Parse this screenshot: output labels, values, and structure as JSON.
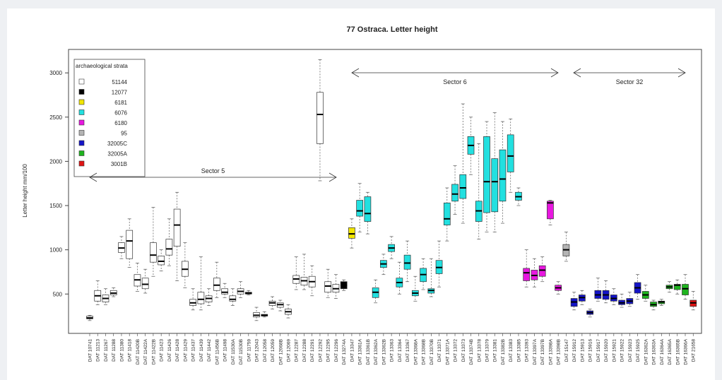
{
  "chart_data": {
    "type": "boxplot",
    "title": "77  Ostraca. Letter height",
    "y_label": "Letter height mm/100",
    "legend_title": "archaeological strata",
    "ylim": [
      55,
      3265
    ],
    "yticks": [
      500,
      1000,
      1500,
      2000,
      2500,
      3000
    ],
    "annotations": [
      "Sector 5",
      "Sector 6",
      "Sector 32"
    ],
    "strata": [
      {
        "name": "51144",
        "color": "#ffffff"
      },
      {
        "name": "12077",
        "color": "#000000"
      },
      {
        "name": "6181",
        "color": "#f2e600"
      },
      {
        "name": "6076",
        "color": "#22e0e0"
      },
      {
        "name": "6180",
        "color": "#e817e0"
      },
      {
        "name": "95",
        "color": "#b4b4b4"
      },
      {
        "name": "32005C",
        "color": "#1414c8"
      },
      {
        "name": "32005A",
        "color": "#1eb41e"
      },
      {
        "name": "3001B",
        "color": "#e01414"
      }
    ],
    "categories": [
      "DAT 10741",
      "DAT 11213",
      "DAT 11267",
      "DAT 11288",
      "DAT 11380",
      "DAT 11418",
      "DAT 11420B",
      "DAT 11422A",
      "DAT 11422B",
      "DAT 11423",
      "DAT 11426",
      "DAT 11428",
      "DAT 11429",
      "DAT 11437",
      "DAT 11439",
      "DAT 11442",
      "DAT 11456B",
      "DAT 11498",
      "DAT 11530A",
      "DAT 11530B",
      "DAT 11759",
      "DAT 12043",
      "DAT 12058",
      "DAT 12059",
      "DAT 12068B",
      "DAT 12069",
      "DAT 12287",
      "DAT 12288",
      "DAT 12291",
      "DAT 12292",
      "DAT 12295",
      "DAT 12296",
      "DAT 13274A",
      "DAT 13347",
      "DAT 13361A",
      "DAT 13361B",
      "DAT 13362A",
      "DAT 13362B",
      "DAT 13363",
      "DAT 13364",
      "DAT 13367",
      "DAT 13368A",
      "DAT 13368B",
      "DAT 13370B",
      "DAT 13371",
      "DAT 13371A",
      "DAT 13372",
      "DAT 13373",
      "DAT 13374B",
      "DAT 13378",
      "DAT 13379",
      "DAT 13381",
      "DAT 13382B",
      "DAT 13383",
      "DAT 13385",
      "DAT 13393",
      "DAT 13397A",
      "DAT 13397B",
      "DAT 13398A",
      "DAT 13398B",
      "DAT 15147",
      "DAT 15912",
      "DAT 15913",
      "DAT 15916",
      "DAT 15917",
      "DAT 15920",
      "DAT 15921",
      "DAT 15922",
      "DAT 15923",
      "DAT 15925",
      "DAT 16362A",
      "DAT 16363A",
      "DAT 16364A",
      "DAT 16365A",
      "DAT 16365B",
      "DAT 16366A",
      "DAT 21658"
    ],
    "box_strata": [
      0,
      0,
      0,
      0,
      0,
      0,
      0,
      0,
      0,
      0,
      0,
      0,
      0,
      0,
      0,
      0,
      0,
      0,
      0,
      0,
      0,
      0,
      0,
      0,
      0,
      0,
      0,
      0,
      0,
      0,
      0,
      0,
      1,
      2,
      3,
      3,
      3,
      3,
      3,
      3,
      3,
      3,
      3,
      3,
      3,
      3,
      3,
      3,
      3,
      3,
      3,
      3,
      3,
      3,
      3,
      4,
      4,
      4,
      4,
      4,
      5,
      6,
      6,
      6,
      6,
      6,
      6,
      6,
      6,
      6,
      7,
      7,
      7,
      7,
      7,
      7,
      8
    ],
    "boxes": [
      {
        "min": 200,
        "q1": 220,
        "median": 230,
        "q3": 250,
        "max": 260
      },
      {
        "min": 380,
        "q1": 420,
        "median": 480,
        "q3": 540,
        "max": 650
      },
      {
        "min": 380,
        "q1": 410,
        "median": 450,
        "q3": 490,
        "max": 560
      },
      {
        "min": 470,
        "q1": 490,
        "median": 510,
        "q3": 540,
        "max": 570
      },
      {
        "min": 900,
        "q1": 970,
        "median": 1020,
        "q3": 1080,
        "max": 1150
      },
      {
        "min": 800,
        "q1": 900,
        "median": 1100,
        "q3": 1220,
        "max": 1350
      },
      {
        "min": 530,
        "q1": 590,
        "median": 660,
        "q3": 720,
        "max": 850
      },
      {
        "min": 510,
        "q1": 560,
        "median": 610,
        "q3": 680,
        "max": 780
      },
      {
        "min": 700,
        "q1": 860,
        "median": 940,
        "q3": 1080,
        "max": 1480
      },
      {
        "min": 760,
        "q1": 830,
        "median": 870,
        "q3": 930,
        "max": 1000
      },
      {
        "min": 820,
        "q1": 940,
        "median": 1010,
        "q3": 1120,
        "max": 1350
      },
      {
        "min": 650,
        "q1": 1040,
        "median": 1280,
        "q3": 1460,
        "max": 1650
      },
      {
        "min": 570,
        "q1": 700,
        "median": 780,
        "q3": 870,
        "max": 1080
      },
      {
        "min": 320,
        "q1": 370,
        "median": 400,
        "q3": 440,
        "max": 560
      },
      {
        "min": 320,
        "q1": 390,
        "median": 440,
        "q3": 520,
        "max": 920
      },
      {
        "min": 370,
        "q1": 410,
        "median": 450,
        "q3": 480,
        "max": 560
      },
      {
        "min": 460,
        "q1": 540,
        "median": 600,
        "q3": 680,
        "max": 860
      },
      {
        "min": 460,
        "q1": 500,
        "median": 520,
        "q3": 560,
        "max": 620
      },
      {
        "min": 370,
        "q1": 420,
        "median": 440,
        "q3": 480,
        "max": 560
      },
      {
        "min": 460,
        "q1": 500,
        "median": 530,
        "q3": 560,
        "max": 640
      },
      {
        "min": 490,
        "q1": 500,
        "median": 510,
        "q3": 520,
        "max": 540
      },
      {
        "min": 200,
        "q1": 240,
        "median": 260,
        "q3": 290,
        "max": 350
      },
      {
        "min": 240,
        "q1": 250,
        "median": 260,
        "q3": 270,
        "max": 300
      },
      {
        "min": 330,
        "q1": 370,
        "median": 400,
        "q3": 420,
        "max": 470
      },
      {
        "min": 310,
        "q1": 350,
        "median": 380,
        "q3": 400,
        "max": 430
      },
      {
        "min": 230,
        "q1": 270,
        "median": 300,
        "q3": 330,
        "max": 380
      },
      {
        "min": 550,
        "q1": 620,
        "median": 670,
        "q3": 710,
        "max": 920
      },
      {
        "min": 550,
        "q1": 600,
        "median": 650,
        "q3": 690,
        "max": 950
      },
      {
        "min": 480,
        "q1": 580,
        "median": 640,
        "q3": 700,
        "max": 820
      },
      {
        "min": 1780,
        "q1": 2200,
        "median": 2530,
        "q3": 2780,
        "max": 3150
      },
      {
        "min": 460,
        "q1": 520,
        "median": 590,
        "q3": 640,
        "max": 780
      },
      {
        "min": 450,
        "q1": 520,
        "median": 560,
        "q3": 610,
        "max": 720
      },
      {
        "min": 540,
        "q1": 560,
        "median": 600,
        "q3": 640,
        "max": 660
      },
      {
        "min": 1020,
        "q1": 1130,
        "median": 1180,
        "q3": 1250,
        "max": 1350
      },
      {
        "min": 1200,
        "q1": 1380,
        "median": 1440,
        "q3": 1560,
        "max": 1750
      },
      {
        "min": 1180,
        "q1": 1320,
        "median": 1410,
        "q3": 1600,
        "max": 1650
      },
      {
        "min": 400,
        "q1": 460,
        "median": 520,
        "q3": 570,
        "max": 660
      },
      {
        "min": 720,
        "q1": 800,
        "median": 840,
        "q3": 880,
        "max": 950
      },
      {
        "min": 900,
        "q1": 980,
        "median": 1020,
        "q3": 1060,
        "max": 1150
      },
      {
        "min": 500,
        "q1": 580,
        "median": 630,
        "q3": 680,
        "max": 860
      },
      {
        "min": 640,
        "q1": 780,
        "median": 850,
        "q3": 940,
        "max": 1100
      },
      {
        "min": 420,
        "q1": 480,
        "median": 510,
        "q3": 540,
        "max": 700
      },
      {
        "min": 550,
        "q1": 640,
        "median": 720,
        "q3": 790,
        "max": 900
      },
      {
        "min": 470,
        "q1": 510,
        "median": 540,
        "q3": 560,
        "max": 900
      },
      {
        "min": 580,
        "q1": 730,
        "median": 800,
        "q3": 880,
        "max": 1100
      },
      {
        "min": 1100,
        "q1": 1280,
        "median": 1350,
        "q3": 1530,
        "max": 1700
      },
      {
        "min": 1400,
        "q1": 1550,
        "median": 1630,
        "q3": 1740,
        "max": 1950
      },
      {
        "min": 1300,
        "q1": 1580,
        "median": 1700,
        "q3": 1850,
        "max": 2650
      },
      {
        "min": 1850,
        "q1": 2080,
        "median": 2180,
        "q3": 2280,
        "max": 2500
      },
      {
        "min": 1120,
        "q1": 1320,
        "median": 1440,
        "q3": 1550,
        "max": 2200
      },
      {
        "min": 1200,
        "q1": 1420,
        "median": 1770,
        "q3": 2280,
        "max": 2450
      },
      {
        "min": 1200,
        "q1": 1430,
        "median": 1770,
        "q3": 2030,
        "max": 2550
      },
      {
        "min": 1300,
        "q1": 1550,
        "median": 1800,
        "q3": 2130,
        "max": 2450
      },
      {
        "min": 1650,
        "q1": 1880,
        "median": 2060,
        "q3": 2300,
        "max": 2480
      },
      {
        "min": 1500,
        "q1": 1560,
        "median": 1600,
        "q3": 1650,
        "max": 1700
      },
      {
        "min": 580,
        "q1": 650,
        "median": 740,
        "q3": 790,
        "max": 1000
      },
      {
        "min": 580,
        "q1": 660,
        "median": 710,
        "q3": 770,
        "max": 900
      },
      {
        "min": 640,
        "q1": 700,
        "median": 770,
        "q3": 820,
        "max": 920
      },
      {
        "min": 1280,
        "q1": 1350,
        "median": 1530,
        "q3": 1550,
        "max": 1560
      },
      {
        "min": 500,
        "q1": 540,
        "median": 570,
        "q3": 600,
        "max": 640
      },
      {
        "min": 870,
        "q1": 930,
        "median": 1000,
        "q3": 1060,
        "max": 1200
      },
      {
        "min": 320,
        "q1": 360,
        "median": 410,
        "q3": 450,
        "max": 520
      },
      {
        "min": 380,
        "q1": 420,
        "median": 460,
        "q3": 490,
        "max": 540
      },
      {
        "min": 240,
        "q1": 270,
        "median": 290,
        "q3": 310,
        "max": 330
      },
      {
        "min": 420,
        "q1": 450,
        "median": 490,
        "q3": 540,
        "max": 680
      },
      {
        "min": 400,
        "q1": 440,
        "median": 490,
        "q3": 540,
        "max": 650
      },
      {
        "min": 380,
        "q1": 420,
        "median": 450,
        "q3": 490,
        "max": 560
      },
      {
        "min": 350,
        "q1": 380,
        "median": 400,
        "q3": 430,
        "max": 500
      },
      {
        "min": 360,
        "q1": 390,
        "median": 420,
        "q3": 450,
        "max": 520
      },
      {
        "min": 440,
        "q1": 510,
        "median": 570,
        "q3": 630,
        "max": 720
      },
      {
        "min": 420,
        "q1": 450,
        "median": 490,
        "q3": 530,
        "max": 600
      },
      {
        "min": 320,
        "q1": 360,
        "median": 380,
        "q3": 410,
        "max": 430
      },
      {
        "min": 370,
        "q1": 390,
        "median": 410,
        "q3": 420,
        "max": 440
      },
      {
        "min": 520,
        "q1": 560,
        "median": 580,
        "q3": 600,
        "max": 640
      },
      {
        "min": 500,
        "q1": 550,
        "median": 600,
        "q3": 610,
        "max": 660
      },
      {
        "min": 440,
        "q1": 490,
        "median": 560,
        "q3": 610,
        "max": 720
      },
      {
        "min": 320,
        "q1": 360,
        "median": 400,
        "q3": 430,
        "max": 530
      }
    ]
  }
}
